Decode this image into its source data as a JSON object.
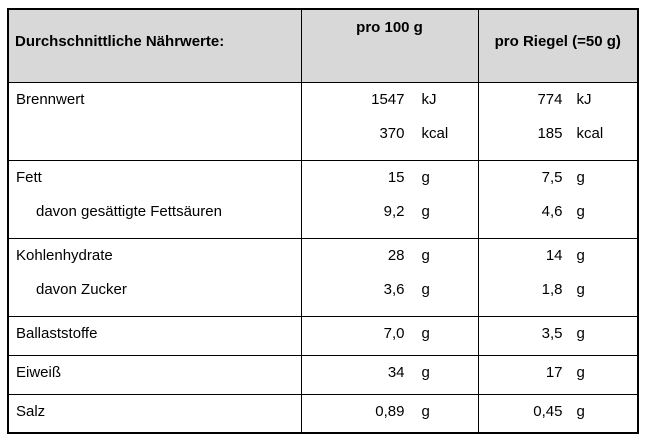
{
  "table": {
    "header": {
      "col1": "Durchschnittliche Nährwerte:",
      "col2": "pro 100 g",
      "col3": "pro Riegel (=50 g)"
    },
    "rows": [
      {
        "label": "Brennwert",
        "v100": "1547",
        "u100": "kJ",
        "v50": "774",
        "u50": "kJ"
      },
      {
        "label": "",
        "v100": "370",
        "u100": "kcal",
        "v50": "185",
        "u50": "kcal"
      },
      {
        "label": "Fett",
        "v100": "15",
        "u100": "g",
        "v50": "7,5",
        "u50": "g"
      },
      {
        "label": "davon gesättigte Fettsäuren",
        "v100": "9,2",
        "u100": "g",
        "v50": "4,6",
        "u50": "g"
      },
      {
        "label": "Kohlenhydrate",
        "v100": "28",
        "u100": "g",
        "v50": "14",
        "u50": "g"
      },
      {
        "label": "davon Zucker",
        "v100": "3,6",
        "u100": "g",
        "v50": "1,8",
        "u50": "g"
      },
      {
        "label": "Ballaststoffe",
        "v100": "7,0",
        "u100": "g",
        "v50": "3,5",
        "u50": "g"
      },
      {
        "label": "Eiweiß",
        "v100": "34",
        "u100": "g",
        "v50": "17",
        "u50": "g"
      },
      {
        "label": "Salz",
        "v100": "0,89",
        "u100": "g",
        "v50": "0,45",
        "u50": "g"
      }
    ],
    "colors": {
      "header_bg": "#d8d8d8",
      "border": "#000000",
      "text": "#000000",
      "page_bg": "#ffffff"
    }
  }
}
